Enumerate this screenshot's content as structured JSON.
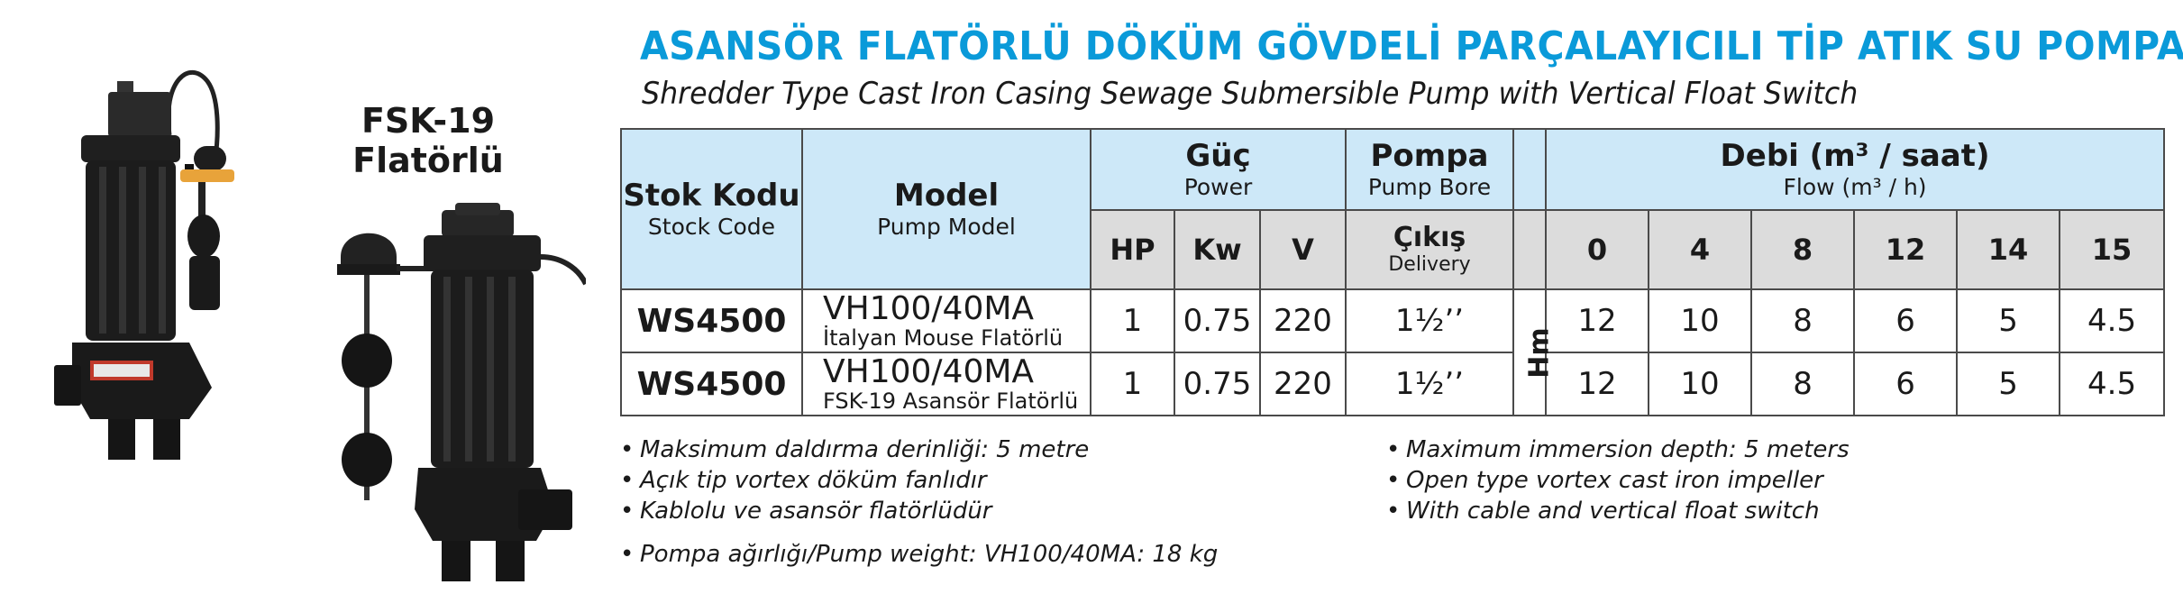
{
  "title": "ASANSÖR FLATÖRLÜ DÖKÜM GÖVDELİ PARÇALAYICILI TİP ATIK SU POMPASI",
  "subtitle": "Shredder Type Cast Iron Casing Sewage Submersible Pump with Vertical Float Switch",
  "product_label": {
    "line1": "FSK-19",
    "line2": "Flatörlü"
  },
  "colors": {
    "title": "#0a9ad9",
    "header_blue": "#cde8f8",
    "header_gray": "#dcdcdc",
    "pump_body": "#1c1c1c",
    "float_orange": "#e8a33a"
  },
  "table": {
    "stock_code": {
      "tr": "Stok Kodu",
      "en": "Stock Code"
    },
    "model": {
      "tr": "Model",
      "en": "Pump Model"
    },
    "power": {
      "tr": "Güç",
      "en": "Power",
      "hp": "HP",
      "kw": "Kw",
      "v": "V"
    },
    "pump": {
      "tr": "Pompa",
      "en": "Pump Bore",
      "delivery_tr": "Çıkış",
      "delivery_en": "Delivery"
    },
    "flow": {
      "tr": "Debi (m³ / saat)",
      "en": "Flow (m³ / h)",
      "points": [
        "0",
        "4",
        "8",
        "12",
        "14",
        "15"
      ]
    },
    "head_unit": "Hm",
    "rows": [
      {
        "code": "WS4500",
        "model": "VH100/40MA",
        "model_sub": "İtalyan Mouse Flatörlü",
        "hp": "1",
        "kw": "0.75",
        "v": "220",
        "delivery": "1½’’",
        "heads": [
          "12",
          "10",
          "8",
          "6",
          "5",
          "4.5"
        ]
      },
      {
        "code": "WS4500",
        "model": "VH100/40MA",
        "model_sub": "FSK-19 Asansör Flatörlü",
        "hp": "1",
        "kw": "0.75",
        "v": "220",
        "delivery": "1½’’",
        "heads": [
          "12",
          "10",
          "8",
          "6",
          "5",
          "4.5"
        ]
      }
    ]
  },
  "notes_tr": [
    "Maksimum daldırma derinliği: 5 metre",
    "Açık tip vortex döküm fanlıdır",
    "Kablolu ve asansör flatörlüdür"
  ],
  "notes_en": [
    "Maximum immersion depth: 5 meters",
    "Open type vortex cast iron impeller",
    "With cable and vertical float switch"
  ],
  "weight_note": "Pompa ağırlığı/Pump weight: VH100/40MA: 18 kg"
}
